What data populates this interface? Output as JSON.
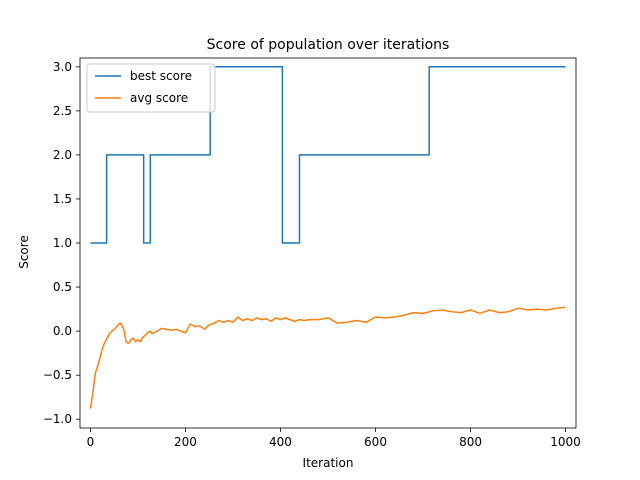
{
  "chart_data": {
    "type": "line",
    "title": "Score of population over iterations",
    "xlabel": "Iteration",
    "ylabel": "Score",
    "xlim": [
      -22,
      1022
    ],
    "ylim": [
      -1.1,
      3.1
    ],
    "xticks": [
      0,
      200,
      400,
      600,
      800,
      1000
    ],
    "yticks": [
      -1.0,
      -0.5,
      0.0,
      0.5,
      1.0,
      1.5,
      2.0,
      2.5,
      3.0
    ],
    "xtick_labels": [
      "0",
      "200",
      "400",
      "600",
      "800",
      "1000"
    ],
    "ytick_labels": [
      "−1.0",
      "−0.5",
      "0.0",
      "0.5",
      "1.0",
      "1.5",
      "2.0",
      "2.5",
      "3.0"
    ],
    "grid": false,
    "legend": "top-left",
    "series": [
      {
        "name": "best score",
        "color": "#1f77b4",
        "step": true,
        "x": [
          0,
          34,
          34,
          112,
          112,
          126,
          126,
          252,
          252,
          404,
          404,
          440,
          440,
          713,
          713,
          1000
        ],
        "y": [
          1.0,
          1.0,
          2.0,
          2.0,
          1.0,
          1.0,
          2.0,
          2.0,
          3.0,
          3.0,
          1.0,
          1.0,
          2.0,
          2.0,
          3.0,
          3.0
        ]
      },
      {
        "name": "avg score",
        "color": "#ff7f0e",
        "step": false,
        "x": [
          0,
          5,
          10,
          15,
          20,
          25,
          30,
          35,
          40,
          45,
          50,
          55,
          60,
          63,
          66,
          70,
          75,
          80,
          85,
          90,
          95,
          100,
          105,
          110,
          115,
          120,
          125,
          130,
          140,
          150,
          160,
          170,
          180,
          190,
          200,
          210,
          220,
          230,
          240,
          250,
          260,
          270,
          280,
          290,
          300,
          310,
          320,
          330,
          340,
          350,
          360,
          370,
          380,
          390,
          400,
          410,
          420,
          430,
          440,
          450,
          460,
          480,
          500,
          520,
          540,
          560,
          580,
          600,
          620,
          640,
          660,
          680,
          700,
          720,
          740,
          760,
          780,
          800,
          820,
          840,
          860,
          880,
          900,
          920,
          940,
          960,
          980,
          1000
        ],
        "y": [
          -0.88,
          -0.7,
          -0.48,
          -0.4,
          -0.3,
          -0.2,
          -0.13,
          -0.08,
          -0.03,
          0.0,
          0.02,
          0.05,
          0.08,
          0.09,
          0.07,
          0.02,
          -0.12,
          -0.14,
          -0.1,
          -0.08,
          -0.12,
          -0.1,
          -0.12,
          -0.07,
          -0.05,
          -0.02,
          0.0,
          -0.03,
          0.0,
          0.03,
          0.02,
          0.01,
          0.02,
          0.0,
          -0.02,
          0.08,
          0.05,
          0.06,
          0.02,
          0.07,
          0.09,
          0.12,
          0.1,
          0.12,
          0.1,
          0.16,
          0.12,
          0.14,
          0.12,
          0.15,
          0.13,
          0.14,
          0.11,
          0.15,
          0.13,
          0.15,
          0.13,
          0.11,
          0.13,
          0.12,
          0.13,
          0.13,
          0.15,
          0.09,
          0.1,
          0.12,
          0.1,
          0.16,
          0.15,
          0.16,
          0.18,
          0.21,
          0.2,
          0.23,
          0.24,
          0.22,
          0.21,
          0.24,
          0.2,
          0.24,
          0.21,
          0.22,
          0.26,
          0.24,
          0.25,
          0.24,
          0.26,
          0.27
        ]
      }
    ]
  }
}
